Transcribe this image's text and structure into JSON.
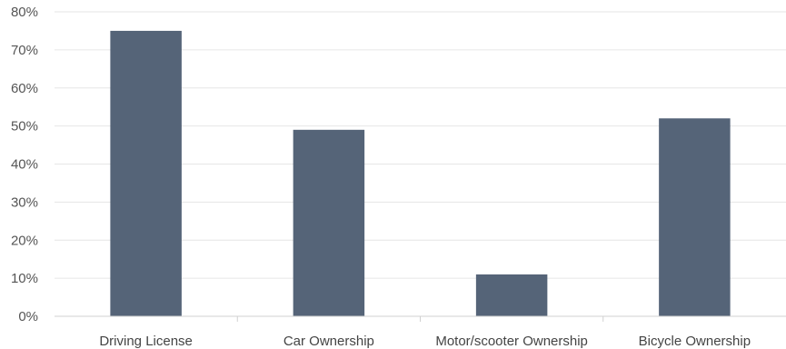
{
  "chart_data": {
    "type": "bar",
    "categories": [
      "Driving License",
      "Car Ownership",
      "Motor/scooter Ownership",
      "Bicycle Ownership"
    ],
    "values": [
      75,
      49,
      11,
      52
    ],
    "ylim": [
      0,
      80
    ],
    "yticks": [
      "0%",
      "10%",
      "20%",
      "30%",
      "40%",
      "50%",
      "60%",
      "70%",
      "80%"
    ],
    "bar_color": "#556478",
    "grid": true,
    "legend": "none"
  }
}
